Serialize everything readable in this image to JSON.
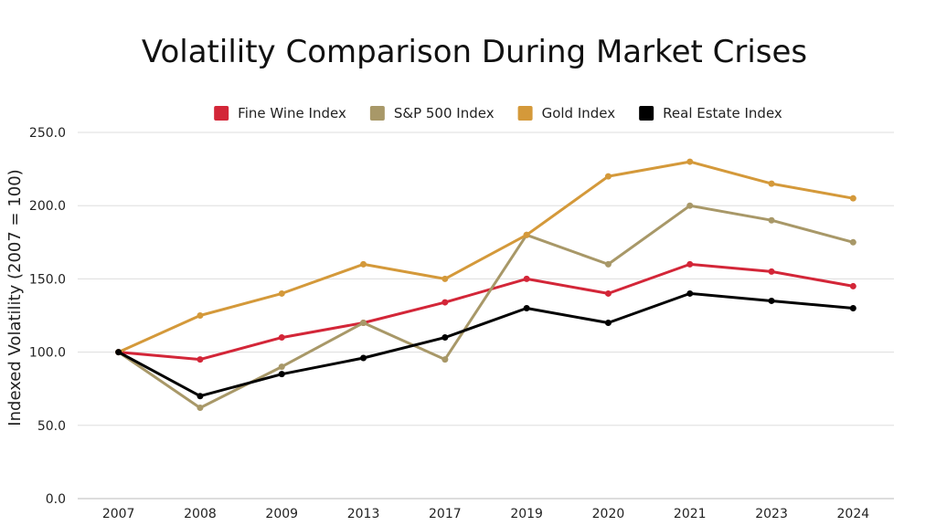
{
  "chart_data": {
    "type": "line",
    "title": "Volatility Comparison During Market Crises",
    "ylabel": "Indexed Volatility (2007 = 100)",
    "xlabel": "",
    "categories": [
      "2007",
      "2008",
      "2009",
      "2013",
      "2017",
      "2019",
      "2020",
      "2021",
      "2023",
      "2024"
    ],
    "ylim": [
      0,
      250
    ],
    "yticks": [
      "0.0",
      "50.0",
      "100.0",
      "150.0",
      "200.0",
      "250.0"
    ],
    "ytick_values": [
      0,
      50,
      100,
      150,
      200,
      250
    ],
    "grid": true,
    "legend_position": "top-center",
    "series": [
      {
        "name": "Fine Wine Index",
        "color": "#d32638",
        "values": [
          100,
          95,
          110,
          120,
          134,
          150,
          140,
          160,
          155,
          145
        ]
      },
      {
        "name": "S&P 500 Index",
        "color": "#a89868",
        "values": [
          100,
          62,
          90,
          120,
          95,
          180,
          160,
          200,
          190,
          175
        ]
      },
      {
        "name": "Gold Index",
        "color": "#d4993a",
        "values": [
          100,
          125,
          140,
          160,
          150,
          180,
          220,
          230,
          215,
          205
        ]
      },
      {
        "name": "Real Estate Index",
        "color": "#000000",
        "values": [
          100,
          70,
          85,
          96,
          110,
          130,
          120,
          140,
          135,
          130
        ]
      }
    ]
  }
}
